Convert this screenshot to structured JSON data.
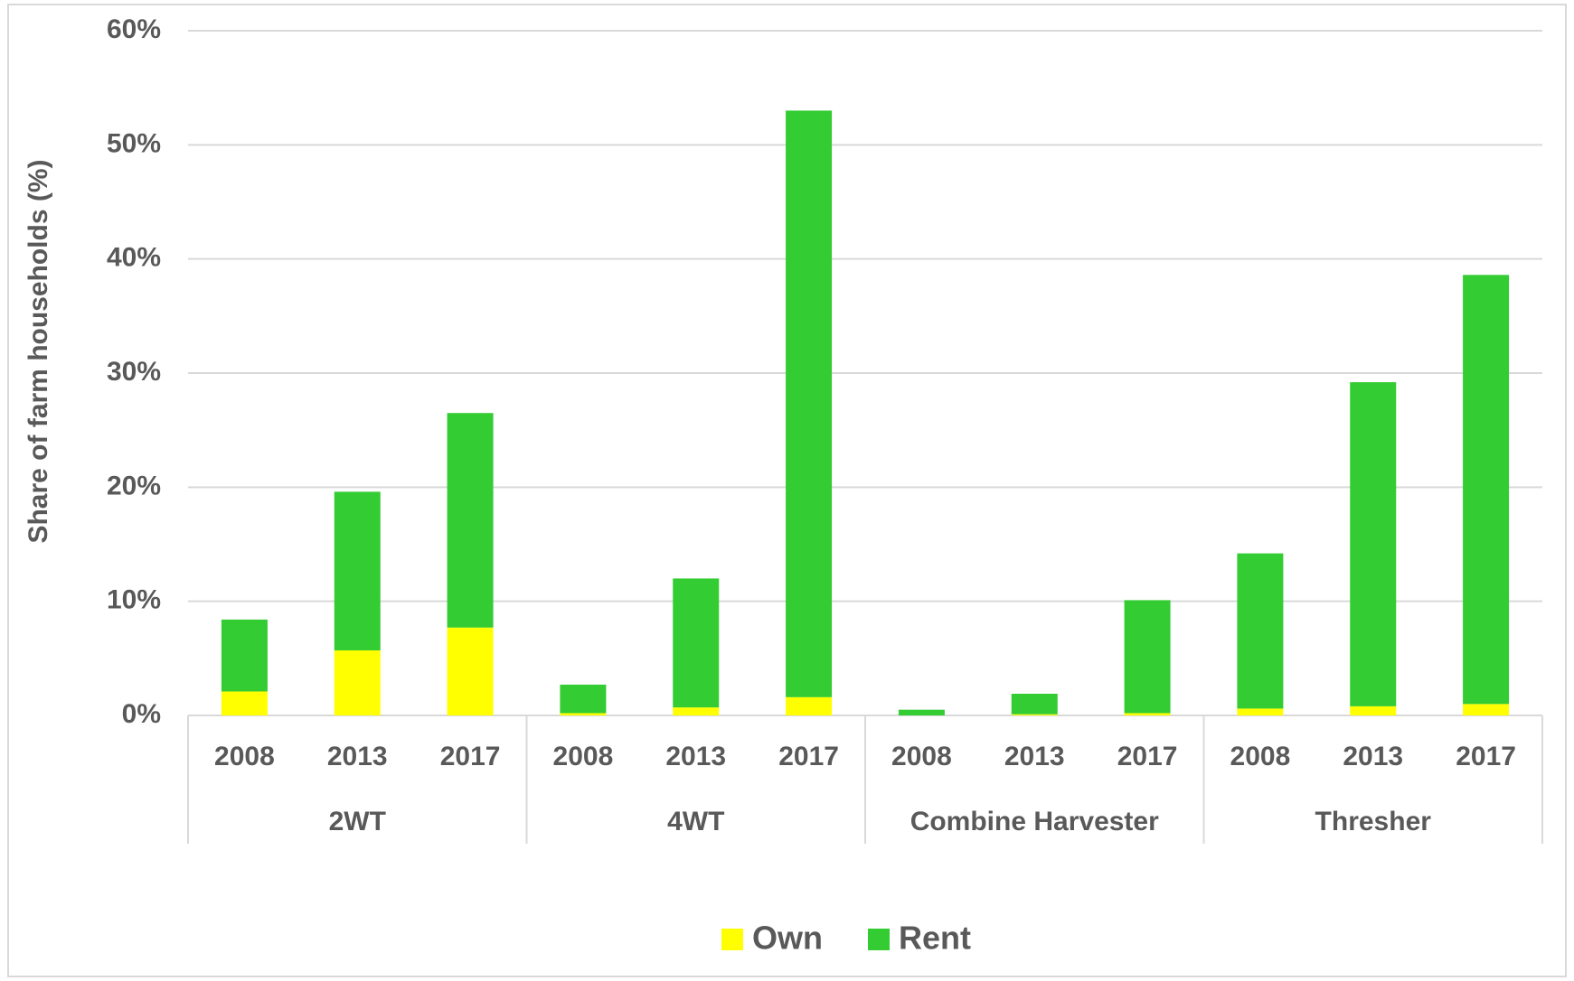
{
  "chart_data": {
    "type": "bar",
    "stacked": true,
    "y_label": "Share of farm households (%)",
    "categories": [
      "2008",
      "2013",
      "2017",
      "2008",
      "2013",
      "2017",
      "2008",
      "2013",
      "2017",
      "2008",
      "2013",
      "2017"
    ],
    "groups": [
      "2WT",
      "4WT",
      "Combine Harvester",
      "Thresher"
    ],
    "series": [
      {
        "name": "Own",
        "color": "#ffff00",
        "values": [
          2.1,
          5.7,
          7.7,
          0.2,
          0.7,
          1.6,
          0,
          0.1,
          0.2,
          0.6,
          0.8,
          1.0
        ]
      },
      {
        "name": "Rent",
        "color": "#33cc33",
        "values": [
          6.3,
          13.9,
          18.8,
          2.5,
          11.3,
          51.4,
          0.5,
          1.8,
          9.9,
          13.6,
          28.4,
          37.6
        ]
      }
    ],
    "ylim": [
      0,
      60
    ],
    "yticks": [
      {
        "value": 0,
        "label": "0%"
      },
      {
        "value": 10,
        "label": "10%"
      },
      {
        "value": 20,
        "label": "20%"
      },
      {
        "value": 30,
        "label": "30%"
      },
      {
        "value": 40,
        "label": "40%"
      },
      {
        "value": 50,
        "label": "50%"
      },
      {
        "value": 60,
        "label": "60%"
      }
    ],
    "grid": true,
    "legend": "bottom"
  }
}
